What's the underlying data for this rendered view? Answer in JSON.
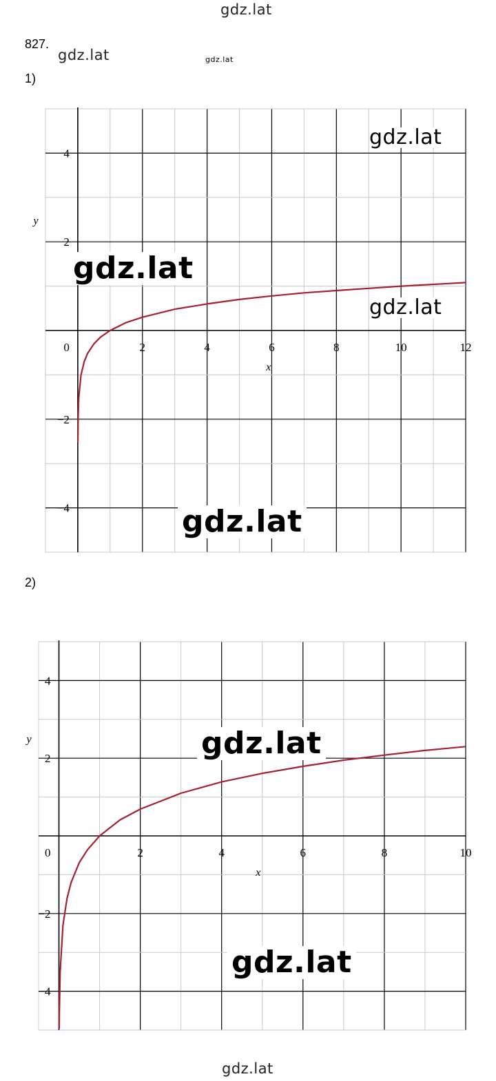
{
  "watermark": "gdz.lat",
  "problem_number": "827.",
  "part1_label": "1)",
  "part2_label": "2)",
  "chart_data": [
    {
      "type": "line",
      "xlabel": "x",
      "ylabel": "y",
      "xlim": [
        -1,
        12
      ],
      "ylim": [
        -5,
        5
      ],
      "grid": true,
      "origin_label": "0",
      "x_ticks": [
        2,
        4,
        6,
        8,
        10,
        12
      ],
      "x_tick_labels": [
        "2",
        "4",
        "6",
        "8",
        "10",
        "12"
      ],
      "y_ticks": [
        4,
        2,
        -2,
        -4
      ],
      "y_tick_labels": [
        "4",
        "2",
        "−2",
        "−4"
      ],
      "series": [
        {
          "color": "#a3222e",
          "x": [
            0.003,
            0.01,
            0.03,
            0.1,
            0.2,
            0.3,
            0.5,
            0.7,
            1,
            1.5,
            2,
            3,
            4,
            5,
            6,
            7,
            8,
            9,
            10,
            11,
            12
          ],
          "y": [
            -2.52,
            -2.0,
            -1.52,
            -1.0,
            -0.7,
            -0.52,
            -0.3,
            -0.15,
            0,
            0.18,
            0.3,
            0.48,
            0.6,
            0.7,
            0.78,
            0.85,
            0.9,
            0.95,
            1.0,
            1.04,
            1.08
          ]
        }
      ]
    },
    {
      "type": "line",
      "xlabel": "x",
      "ylabel": "y",
      "xlim": [
        -0.5,
        10
      ],
      "ylim": [
        -5,
        5
      ],
      "grid": true,
      "origin_label": "0",
      "x_ticks": [
        2,
        4,
        6,
        8,
        10
      ],
      "x_tick_labels": [
        "2",
        "4",
        "6",
        "8",
        "10"
      ],
      "y_ticks": [
        4,
        2,
        -2,
        -4
      ],
      "y_tick_labels": [
        "4",
        "2",
        "−2",
        "−4"
      ],
      "series": [
        {
          "color": "#a3222e",
          "x": [
            0.007,
            0.01,
            0.03,
            0.1,
            0.2,
            0.3,
            0.5,
            0.7,
            1,
            1.5,
            2,
            3,
            4,
            5,
            6,
            7,
            8,
            9,
            10
          ],
          "y": [
            -4.96,
            -4.61,
            -3.51,
            -2.3,
            -1.61,
            -1.2,
            -0.69,
            -0.36,
            0,
            0.41,
            0.69,
            1.1,
            1.39,
            1.61,
            1.79,
            1.95,
            2.08,
            2.2,
            2.3
          ]
        }
      ]
    }
  ]
}
